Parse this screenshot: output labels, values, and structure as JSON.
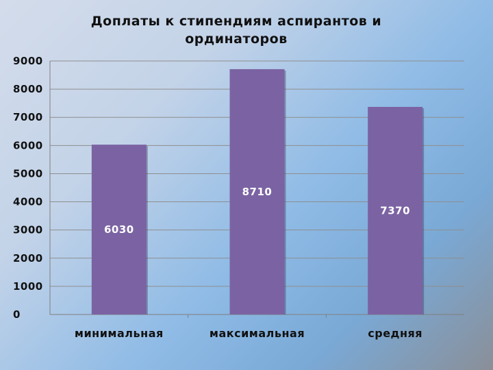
{
  "chart_data": {
    "type": "bar",
    "title": "Доплаты к стипендиям аспирантов и ординаторов",
    "categories": [
      "минимальная",
      "максимальная",
      "средняя"
    ],
    "values": [
      6030,
      8710,
      7370
    ],
    "data_labels": [
      "6030",
      "8710",
      "7370"
    ],
    "ylim": [
      0,
      9000
    ],
    "yticks": [
      "0",
      "1000",
      "2000",
      "3000",
      "4000",
      "5000",
      "6000",
      "7000",
      "8000",
      "9000"
    ],
    "xlabel": "",
    "ylabel": "",
    "grid": true,
    "legend": "none",
    "bar_color": "#7b63a3"
  }
}
